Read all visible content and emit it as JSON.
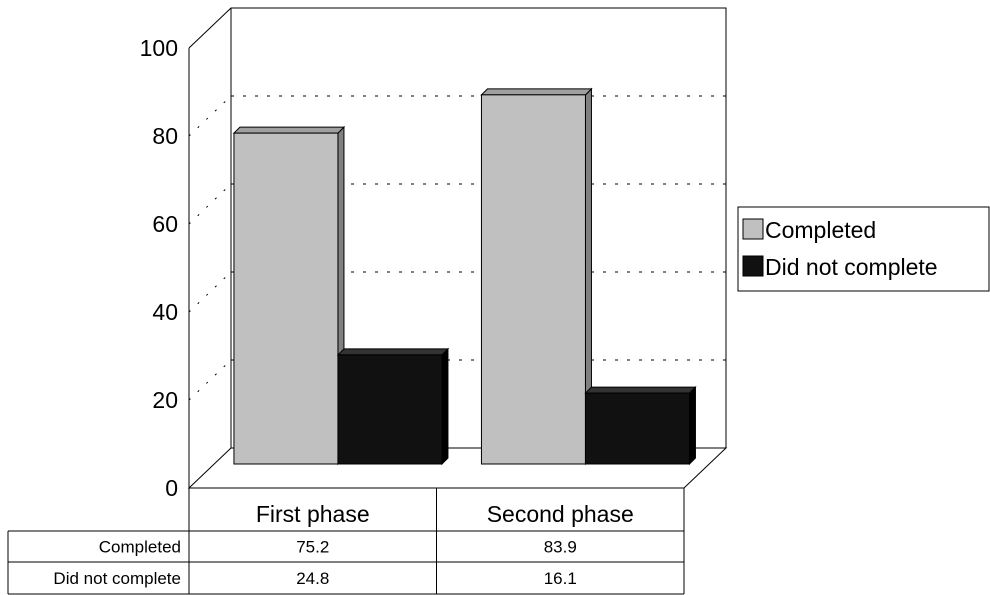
{
  "chart_data": {
    "type": "bar",
    "style": "3d-clustered-column",
    "categories": [
      "First phase",
      "Second phase"
    ],
    "series": [
      {
        "name": "Completed",
        "values": [
          75.2,
          83.9
        ],
        "color": "#c0c0c0"
      },
      {
        "name": "Did not complete",
        "values": [
          24.8,
          16.1
        ],
        "color": "#111111"
      }
    ],
    "ylim": [
      0,
      100
    ],
    "yticks": [
      0,
      20,
      40,
      60,
      80,
      100
    ],
    "ytick_labels": [
      "0",
      "20",
      "40",
      "60",
      "80",
      "100"
    ],
    "gridlines": "dotted",
    "legend_position": "right",
    "data_table": {
      "row_labels": [
        "Completed",
        "Did not complete"
      ],
      "rows": [
        [
          "75.2",
          "83.9"
        ],
        [
          "24.8",
          "16.1"
        ]
      ]
    }
  }
}
